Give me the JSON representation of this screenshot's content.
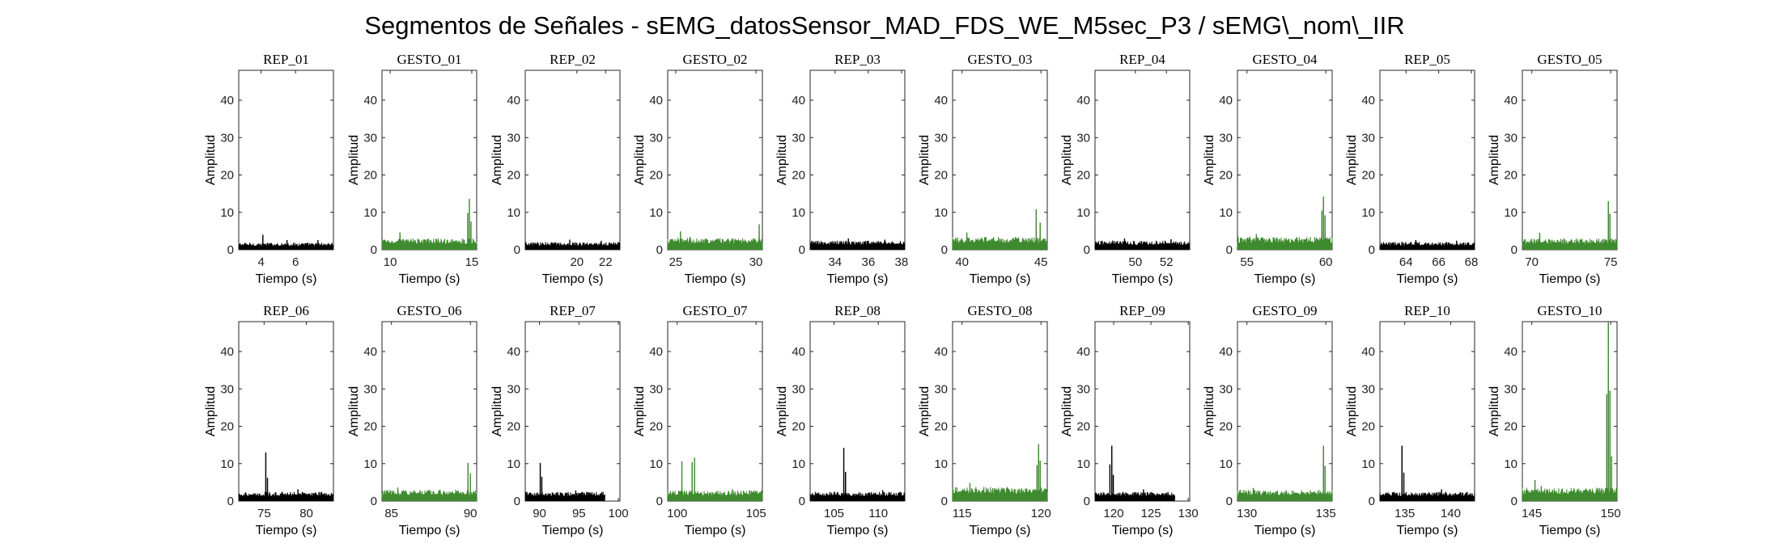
{
  "figure": {
    "title": "Segmentos de Señales - sEMG_datosSensor_MAD_FDS_WE_M5sec_P3 / sEMG\\_nom\\_IIR"
  },
  "colors": {
    "rep": "#000000",
    "gesto": "#3e8a2e",
    "axis": "#262626"
  },
  "chart_data": {
    "type": "line",
    "title": "Segmentos de Señales - sEMG_datosSensor_MAD_FDS_WE_M5sec_P3 / sEMG\\_nom\\_IIR",
    "xlabel": "Tiempo (s)",
    "ylabel": "Amplitud",
    "ylim": [
      0,
      48
    ],
    "yticks": [
      0,
      10,
      20,
      30,
      40
    ],
    "panels": [
      {
        "title": "REP_01",
        "kind": "rep",
        "xlim": [
          2.7,
          8.2
        ],
        "xticks": [
          4,
          6
        ],
        "data_end": 8.2,
        "baseline": 1.0,
        "peaks": [
          [
            4.1,
            4.0
          ],
          [
            5.5,
            2.6
          ],
          [
            7.3,
            2.6
          ]
        ]
      },
      {
        "title": "GESTO_01",
        "kind": "gesto",
        "xlim": [
          9.5,
          15.3
        ],
        "xticks": [
          10,
          15
        ],
        "data_end": 15.3,
        "baseline": 1.6,
        "peaks": [
          [
            10.6,
            4.6
          ],
          [
            14.75,
            9.8
          ],
          [
            14.85,
            13.6
          ],
          [
            14.95,
            7.5
          ]
        ]
      },
      {
        "title": "REP_02",
        "kind": "rep",
        "xlim": [
          16.4,
          23.0
        ],
        "xticks": [
          20,
          22
        ],
        "data_end": 23.0,
        "baseline": 1.1,
        "peaks": [
          [
            19.5,
            2.7
          ],
          [
            21.7,
            2.4
          ]
        ]
      },
      {
        "title": "GESTO_02",
        "kind": "gesto",
        "xlim": [
          24.5,
          30.4
        ],
        "xticks": [
          25,
          30
        ],
        "data_end": 30.4,
        "baseline": 1.7,
        "peaks": [
          [
            25.3,
            4.9
          ],
          [
            25.9,
            3.4
          ],
          [
            30.2,
            6.8
          ]
        ]
      },
      {
        "title": "REP_03",
        "kind": "rep",
        "xlim": [
          32.5,
          38.2
        ],
        "xticks": [
          34,
          36,
          38
        ],
        "data_end": 38.2,
        "baseline": 1.3,
        "peaks": [
          [
            34.8,
            3.0
          ],
          [
            37.0,
            2.7
          ]
        ]
      },
      {
        "title": "GESTO_03",
        "kind": "gesto",
        "xlim": [
          39.4,
          45.4
        ],
        "xticks": [
          40,
          45
        ],
        "data_end": 45.4,
        "baseline": 1.8,
        "peaks": [
          [
            40.3,
            4.6
          ],
          [
            42.0,
            3.3
          ],
          [
            44.7,
            10.8
          ],
          [
            44.95,
            7.2
          ]
        ]
      },
      {
        "title": "REP_04",
        "kind": "rep",
        "xlim": [
          47.4,
          53.5
        ],
        "xticks": [
          50,
          52
        ],
        "data_end": 53.5,
        "baseline": 1.3,
        "peaks": [
          [
            49.3,
            3.0
          ],
          [
            52.3,
            2.8
          ]
        ]
      },
      {
        "title": "GESTO_04",
        "kind": "gesto",
        "xlim": [
          54.4,
          60.4
        ],
        "xticks": [
          55,
          60
        ],
        "data_end": 60.4,
        "baseline": 1.8,
        "peaks": [
          [
            55.6,
            4.2
          ],
          [
            59.75,
            10.5
          ],
          [
            59.85,
            14.2
          ],
          [
            59.95,
            9.2
          ]
        ]
      },
      {
        "title": "REP_05",
        "kind": "rep",
        "xlim": [
          62.4,
          68.2
        ],
        "xticks": [
          64,
          66,
          68
        ],
        "data_end": 68.2,
        "baseline": 1.1,
        "peaks": [
          [
            64.6,
            2.6
          ],
          [
            67.1,
            2.4
          ]
        ]
      },
      {
        "title": "GESTO_05",
        "kind": "gesto",
        "xlim": [
          69.4,
          75.4
        ],
        "xticks": [
          70,
          75
        ],
        "data_end": 75.4,
        "baseline": 1.6,
        "peaks": [
          [
            70.5,
            4.5
          ],
          [
            74.85,
            13.0
          ],
          [
            74.95,
            9.6
          ]
        ]
      },
      {
        "title": "REP_06",
        "kind": "rep",
        "xlim": [
          72.0,
          83.2
        ],
        "xticks": [
          75,
          80
        ],
        "data_end": 83.2,
        "baseline": 1.3,
        "peaks": [
          [
            75.2,
            13.0
          ],
          [
            75.4,
            6.2
          ],
          [
            79.0,
            3.1
          ]
        ]
      },
      {
        "title": "GESTO_06",
        "kind": "gesto",
        "xlim": [
          84.4,
          90.4
        ],
        "xticks": [
          85,
          90
        ],
        "data_end": 90.4,
        "baseline": 1.6,
        "peaks": [
          [
            85.4,
            3.6
          ],
          [
            89.85,
            10.2
          ],
          [
            90.0,
            7.4
          ]
        ]
      },
      {
        "title": "REP_07",
        "kind": "rep",
        "xlim": [
          88.2,
          100.2
        ],
        "xticks": [
          90,
          95,
          100
        ],
        "data_end": 98.3,
        "baseline": 1.3,
        "peaks": [
          [
            90.1,
            10.2
          ],
          [
            90.3,
            6.5
          ],
          [
            94.6,
            2.8
          ]
        ]
      },
      {
        "title": "GESTO_07",
        "kind": "gesto",
        "xlim": [
          99.4,
          105.4
        ],
        "xticks": [
          100,
          105
        ],
        "data_end": 105.4,
        "baseline": 1.5,
        "peaks": [
          [
            100.3,
            10.6
          ],
          [
            100.95,
            10.4
          ],
          [
            101.1,
            11.6
          ],
          [
            103.5,
            3.1
          ]
        ]
      },
      {
        "title": "REP_08",
        "kind": "rep",
        "xlim": [
          102.3,
          113.0
        ],
        "xticks": [
          105,
          110
        ],
        "data_end": 113.0,
        "baseline": 1.3,
        "peaks": [
          [
            106.1,
            14.2
          ],
          [
            106.3,
            7.8
          ],
          [
            110.5,
            2.9
          ]
        ]
      },
      {
        "title": "GESTO_08",
        "kind": "gesto",
        "xlim": [
          114.4,
          120.4
        ],
        "xticks": [
          115,
          120
        ],
        "data_end": 120.4,
        "baseline": 2.0,
        "peaks": [
          [
            115.5,
            4.8
          ],
          [
            119.75,
            9.6
          ],
          [
            119.85,
            15.2
          ],
          [
            119.95,
            10.8
          ]
        ]
      },
      {
        "title": "REP_09",
        "kind": "rep",
        "xlim": [
          117.5,
          130.2
        ],
        "xticks": [
          120,
          125,
          130
        ],
        "data_end": 128.2,
        "baseline": 1.3,
        "peaks": [
          [
            119.5,
            9.8
          ],
          [
            119.75,
            14.8
          ],
          [
            119.95,
            7.0
          ],
          [
            124.0,
            3.1
          ]
        ]
      },
      {
        "title": "GESTO_09",
        "kind": "gesto",
        "xlim": [
          129.4,
          135.4
        ],
        "xticks": [
          130,
          135
        ],
        "data_end": 135.4,
        "baseline": 1.6,
        "peaks": [
          [
            130.4,
            3.5
          ],
          [
            134.85,
            14.8
          ],
          [
            134.95,
            9.4
          ]
        ]
      },
      {
        "title": "REP_10",
        "kind": "rep",
        "xlim": [
          132.3,
          142.6
        ],
        "xticks": [
          135,
          140
        ],
        "data_end": 142.6,
        "baseline": 1.3,
        "peaks": [
          [
            134.7,
            14.8
          ],
          [
            134.9,
            7.6
          ],
          [
            139.0,
            3.1
          ]
        ]
      },
      {
        "title": "GESTO_10",
        "kind": "gesto",
        "xlim": [
          144.4,
          150.4
        ],
        "xticks": [
          145,
          150
        ],
        "data_end": 150.4,
        "baseline": 1.9,
        "peaks": [
          [
            145.2,
            5.6
          ],
          [
            145.6,
            4.0
          ],
          [
            149.75,
            28.6
          ],
          [
            149.85,
            47.8
          ],
          [
            149.95,
            29.5
          ],
          [
            150.05,
            12.0
          ]
        ]
      }
    ]
  }
}
